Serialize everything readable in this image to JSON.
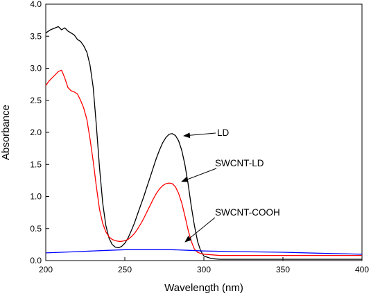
{
  "chart_data": {
    "type": "line",
    "xlabel": "Wavelength (nm)",
    "ylabel": "Absorbance",
    "xlim": [
      200,
      400
    ],
    "ylim": [
      0.0,
      4.0
    ],
    "x_ticks": [
      "200",
      "250",
      "300",
      "350",
      "400"
    ],
    "y_ticks": [
      "0.0",
      "0.5",
      "1.0",
      "1.5",
      "2.0",
      "2.5",
      "3.0",
      "3.5",
      "4.0"
    ],
    "grid": false,
    "series": [
      {
        "name": "LD",
        "color": "#000000",
        "x": [
          200,
          203,
          205,
          208,
          210,
          212,
          214,
          216,
          218,
          220,
          222,
          224,
          226,
          228,
          230,
          232,
          234,
          236,
          238,
          240,
          242,
          244,
          246,
          248,
          250,
          252,
          254,
          256,
          258,
          260,
          262,
          264,
          266,
          268,
          270,
          272,
          274,
          276,
          278,
          280,
          282,
          284,
          286,
          288,
          290,
          292,
          294,
          296,
          298,
          300,
          305,
          310,
          320,
          350,
          400
        ],
        "y": [
          3.55,
          3.6,
          3.62,
          3.65,
          3.6,
          3.63,
          3.58,
          3.55,
          3.52,
          3.45,
          3.42,
          3.35,
          3.25,
          3.05,
          2.7,
          2.1,
          1.45,
          0.9,
          0.55,
          0.35,
          0.25,
          0.21,
          0.2,
          0.22,
          0.27,
          0.35,
          0.46,
          0.58,
          0.72,
          0.86,
          1.0,
          1.15,
          1.3,
          1.45,
          1.6,
          1.73,
          1.84,
          1.92,
          1.97,
          1.98,
          1.95,
          1.87,
          1.72,
          1.5,
          1.2,
          0.85,
          0.55,
          0.3,
          0.15,
          0.07,
          0.03,
          0.02,
          0.02,
          0.02,
          0.02
        ]
      },
      {
        "name": "SWCNT-LD",
        "color": "#ff0000",
        "x": [
          200,
          202,
          204,
          206,
          208,
          210,
          212,
          214,
          216,
          218,
          220,
          222,
          224,
          226,
          228,
          230,
          232,
          234,
          236,
          238,
          240,
          242,
          244,
          246,
          248,
          250,
          252,
          254,
          256,
          258,
          260,
          262,
          264,
          266,
          268,
          270,
          272,
          274,
          276,
          278,
          280,
          282,
          284,
          286,
          288,
          290,
          292,
          294,
          296,
          298,
          300,
          305,
          310,
          320,
          350,
          400
        ],
        "y": [
          2.73,
          2.8,
          2.85,
          2.9,
          2.95,
          2.97,
          2.85,
          2.7,
          2.65,
          2.63,
          2.6,
          2.5,
          2.38,
          2.2,
          1.9,
          1.55,
          1.15,
          0.8,
          0.58,
          0.45,
          0.37,
          0.33,
          0.31,
          0.3,
          0.3,
          0.31,
          0.33,
          0.37,
          0.42,
          0.49,
          0.57,
          0.66,
          0.76,
          0.86,
          0.96,
          1.05,
          1.12,
          1.17,
          1.2,
          1.21,
          1.2,
          1.15,
          1.05,
          0.9,
          0.7,
          0.48,
          0.3,
          0.18,
          0.13,
          0.11,
          0.1,
          0.09,
          0.08,
          0.08,
          0.08,
          0.08
        ]
      },
      {
        "name": "SWCNT-COOH",
        "color": "#0000ff",
        "x": [
          200,
          210,
          220,
          230,
          240,
          250,
          260,
          270,
          280,
          290,
          300,
          320,
          350,
          380,
          400
        ],
        "y": [
          0.12,
          0.13,
          0.14,
          0.15,
          0.16,
          0.17,
          0.17,
          0.17,
          0.17,
          0.16,
          0.15,
          0.14,
          0.13,
          0.11,
          0.1
        ]
      }
    ],
    "annotations": [
      {
        "text": "LD",
        "target": [
          281,
          1.98
        ]
      },
      {
        "text": "SWCNT-LD",
        "target": [
          280,
          1.2
        ]
      },
      {
        "text": "SWCNT-COOH",
        "target": [
          284,
          0.17
        ]
      }
    ]
  }
}
